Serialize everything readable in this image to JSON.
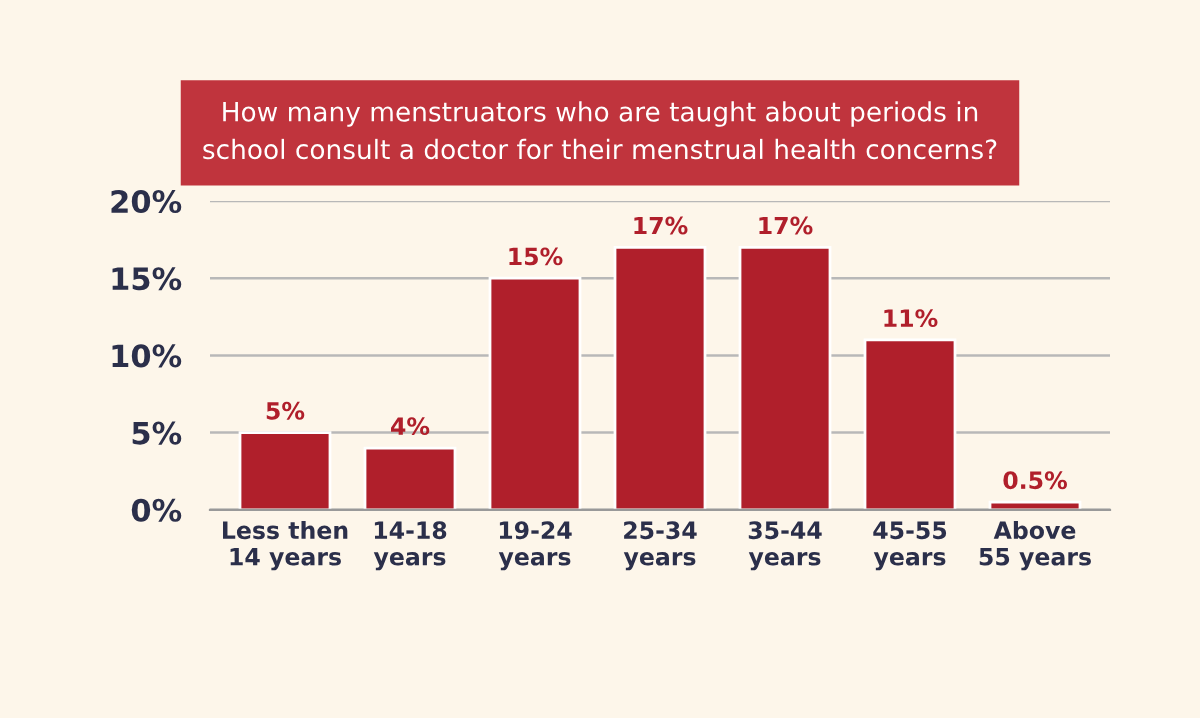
{
  "chart_data": {
    "type": "bar",
    "title": "How many menstruators who are taught about periods in\nschool consult a doctor for their menstrual health concerns?",
    "categories": [
      "Less then\n14 years",
      "14-18\nyears",
      "19-24\nyears",
      "25-34\nyears",
      "35-44\nyears",
      "45-55\nyears",
      "Above\n55 years"
    ],
    "values": [
      5,
      4,
      15,
      17,
      17,
      11,
      0.5
    ],
    "color": "#b01f2b",
    "ylim": [
      0,
      20
    ],
    "yticks": [
      {
        "value": 0,
        "label": "0%"
      },
      {
        "value": 5,
        "label": "5%"
      },
      {
        "value": 10,
        "label": "10%"
      },
      {
        "value": 15,
        "label": "15%"
      },
      {
        "value": 20,
        "label": "20%"
      }
    ],
    "value_labels": [
      "5%",
      "4%",
      "15%",
      "17%",
      "17%",
      "11%",
      "0.5%"
    ],
    "grid": "y"
  }
}
